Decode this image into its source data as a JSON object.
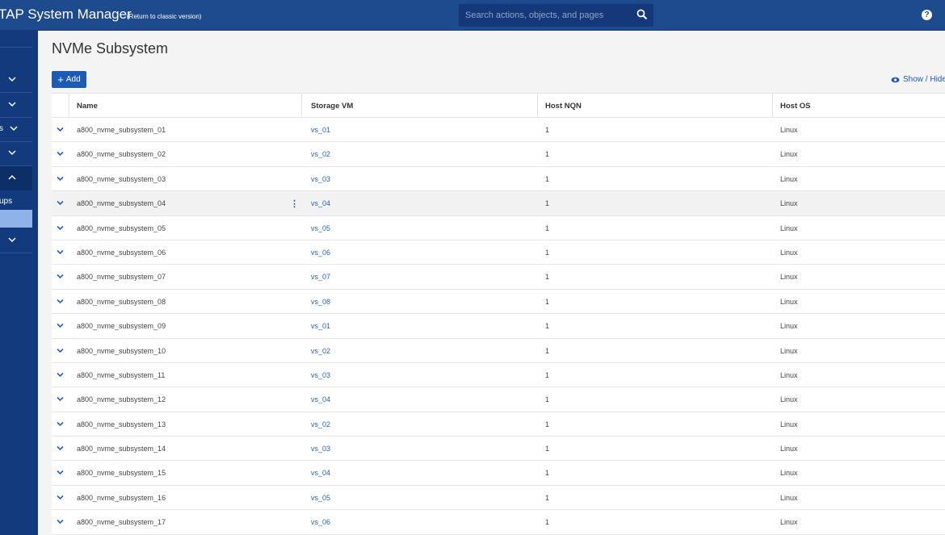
{
  "header": {
    "app_title": "TAP System Manager",
    "classic_link": "(Return to classic version)",
    "search_placeholder": "Search actions, objects, and pages",
    "help": "?"
  },
  "sidebar": {
    "items": [
      {
        "label": "",
        "icon": "chevron-down-icon"
      },
      {
        "label": "",
        "icon": "chevron-down-icon"
      },
      {
        "label": "s",
        "icon": "chevron-down-icon"
      },
      {
        "label": "",
        "icon": "chevron-down-icon"
      },
      {
        "label": "",
        "icon": "chevron-up-icon"
      },
      {
        "label": "ups",
        "icon": ""
      },
      {
        "label": "",
        "icon": "chevron-down-icon"
      }
    ]
  },
  "main": {
    "title": "NVMe Subsystem",
    "add_label": "Add",
    "show_hide_label": "Show / Hide"
  },
  "table": {
    "columns": [
      "Name",
      "Storage VM",
      "Host NQN",
      "Host OS"
    ],
    "rows": [
      {
        "name": "a800_nvme_subsystem_01",
        "vm": "vs_01",
        "nqn": "1",
        "os": "Linux"
      },
      {
        "name": "a800_nvme_subsystem_02",
        "vm": "vs_02",
        "nqn": "1",
        "os": "Linux"
      },
      {
        "name": "a800_nvme_subsystem_03",
        "vm": "vs_03",
        "nqn": "1",
        "os": "Linux"
      },
      {
        "name": "a800_nvme_subsystem_04",
        "vm": "vs_04",
        "nqn": "1",
        "os": "Linux"
      },
      {
        "name": "a800_nvme_subsystem_05",
        "vm": "vs_05",
        "nqn": "1",
        "os": "Linux"
      },
      {
        "name": "a800_nvme_subsystem_06",
        "vm": "vs_06",
        "nqn": "1",
        "os": "Linux"
      },
      {
        "name": "a800_nvme_subsystem_07",
        "vm": "vs_07",
        "nqn": "1",
        "os": "Linux"
      },
      {
        "name": "a800_nvme_subsystem_08",
        "vm": "vs_08",
        "nqn": "1",
        "os": "Linux"
      },
      {
        "name": "a800_nvme_subsystem_09",
        "vm": "vs_01",
        "nqn": "1",
        "os": "Linux"
      },
      {
        "name": "a800_nvme_subsystem_10",
        "vm": "vs_02",
        "nqn": "1",
        "os": "Linux"
      },
      {
        "name": "a800_nvme_subsystem_11",
        "vm": "vs_03",
        "nqn": "1",
        "os": "Linux"
      },
      {
        "name": "a800_nvme_subsystem_12",
        "vm": "vs_04",
        "nqn": "1",
        "os": "Linux"
      },
      {
        "name": "a800_nvme_subsystem_13",
        "vm": "vs_02",
        "nqn": "1",
        "os": "Linux"
      },
      {
        "name": "a800_nvme_subsystem_14",
        "vm": "vs_03",
        "nqn": "1",
        "os": "Linux"
      },
      {
        "name": "a800_nvme_subsystem_15",
        "vm": "vs_04",
        "nqn": "1",
        "os": "Linux"
      },
      {
        "name": "a800_nvme_subsystem_16",
        "vm": "vs_05",
        "nqn": "1",
        "os": "Linux"
      },
      {
        "name": "a800_nvme_subsystem_17",
        "vm": "vs_06",
        "nqn": "1",
        "os": "Linux"
      }
    ]
  },
  "colors": {
    "header_bg": "#1e4a8e",
    "sidebar_bg": "#123a7c",
    "accent": "#1c5bb5",
    "link": "#2a62b8"
  }
}
